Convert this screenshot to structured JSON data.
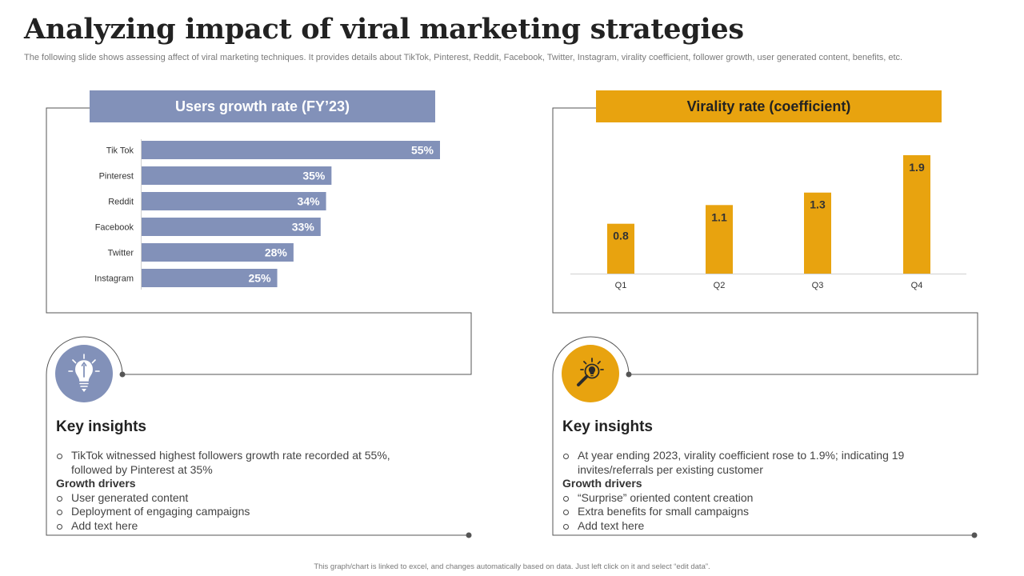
{
  "title": "Analyzing impact of viral marketing strategies",
  "subtitle": "The following slide shows assessing affect of viral marketing techniques. It provides details about TikTok, Pinterest, Reddit, Facebook, Twitter, Instagram, virality coefficient, follower growth, user generated content, benefits, etc.",
  "colors": {
    "left_accent": "#8291b9",
    "right_accent": "#e8a30f",
    "line": "#555555"
  },
  "chart_data": [
    {
      "type": "bar",
      "orientation": "horizontal",
      "title": "Users growth rate (FY’23)",
      "categories": [
        "Tik Tok",
        "Pinterest",
        "Reddit",
        "Facebook",
        "Twitter",
        "Instagram"
      ],
      "values": [
        55,
        35,
        34,
        33,
        28,
        25
      ],
      "value_labels": [
        "55%",
        "35%",
        "34%",
        "33%",
        "28%",
        "25%"
      ],
      "unit": "%",
      "xlim": [
        0,
        55
      ],
      "grid": false,
      "legend": "none"
    },
    {
      "type": "bar",
      "orientation": "vertical",
      "title": "Virality rate (coefficient)",
      "categories": [
        "Q1",
        "Q2",
        "Q3",
        "Q4"
      ],
      "values": [
        0.8,
        1.1,
        1.3,
        1.9
      ],
      "value_labels": [
        "0.8",
        "1.1",
        "1.3",
        "1.9"
      ],
      "ylim": [
        0,
        1.9
      ],
      "grid": false,
      "legend": "none"
    }
  ],
  "left_insights": {
    "icon": "lightbulb-pencil-icon",
    "heading": "Key insights",
    "points": [
      "TikTok witnessed highest followers growth rate recorded at 55%, followed by Pinterest at 35%"
    ],
    "drivers_title": "Growth drivers",
    "drivers": [
      "User generated content",
      "Deployment of engaging campaigns",
      "Add text here"
    ]
  },
  "right_insights": {
    "icon": "lightbulb-magnifier-icon",
    "heading": "Key insights",
    "points": [
      "At year ending 2023, virality coefficient rose to 1.9%; indicating 19 invites/referrals per existing customer"
    ],
    "drivers_title": "Growth drivers",
    "drivers": [
      "“Surprise” oriented content creation",
      "Extra benefits for small campaigns",
      "Add text here"
    ]
  },
  "footer": "This graph/chart is linked to excel, and changes automatically based on data. Just left click on it and select “edit data”."
}
